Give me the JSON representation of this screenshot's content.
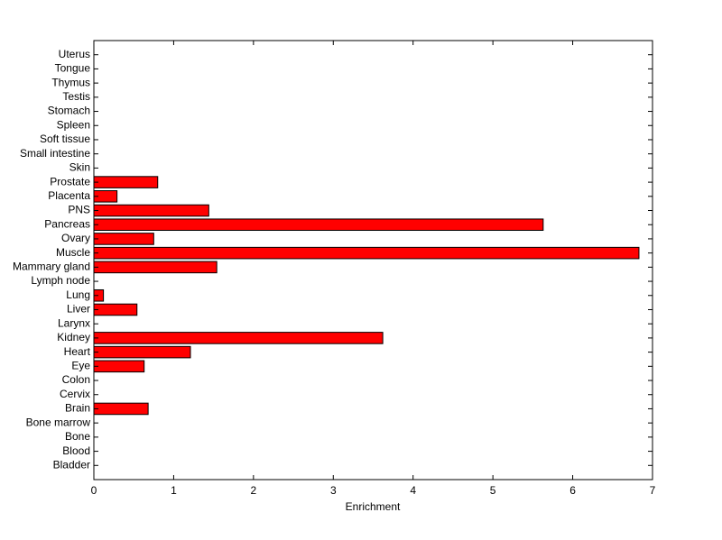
{
  "chart_data": {
    "type": "barh",
    "xlabel": "Enrichment",
    "categories": [
      "Bladder",
      "Blood",
      "Bone",
      "Bone marrow",
      "Brain",
      "Cervix",
      "Colon",
      "Eye",
      "Heart",
      "Kidney",
      "Larynx",
      "Liver",
      "Lung",
      "Lymph node",
      "Mammary gland",
      "Muscle",
      "Ovary",
      "Pancreas",
      "PNS",
      "Placenta",
      "Prostate",
      "Skin",
      "Small intestine",
      "Soft tissue",
      "Spleen",
      "Stomach",
      "Testis",
      "Thymus",
      "Tongue",
      "Uterus"
    ],
    "values": [
      0,
      0,
      0,
      0,
      0.68,
      0,
      0,
      0.63,
      1.21,
      3.62,
      0,
      0.54,
      0.12,
      0,
      1.54,
      6.83,
      0.75,
      5.63,
      1.44,
      0.29,
      0.8,
      0,
      0,
      0,
      0,
      0,
      0,
      0,
      0,
      0
    ],
    "color": "#ff0000",
    "xlim": [
      0,
      7
    ],
    "xticks": [
      0,
      1,
      2,
      3,
      4,
      5,
      6,
      7
    ]
  }
}
